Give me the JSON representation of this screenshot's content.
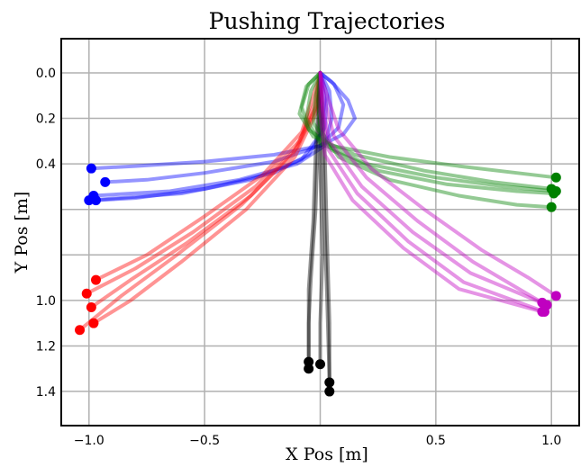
{
  "chart_data": {
    "type": "line",
    "title": "Pushing Trajectories",
    "xlabel": "X Pos [m]",
    "ylabel": "Y Pos [m]",
    "xlim": [
      -1.12,
      1.12
    ],
    "ylim": [
      1.55,
      -0.15
    ],
    "y_inverted": true,
    "grid": true,
    "xticks": [
      -1.0,
      -0.5,
      0.5,
      1.0
    ],
    "xtick_labels": [
      "−1.0",
      "−0.5",
      "0.5",
      "1.0"
    ],
    "yticks": [
      0.0,
      0.2,
      0.4,
      1.0,
      1.2,
      1.4
    ],
    "ytick_labels": [
      "0.0",
      "0.2",
      "0.4",
      "1.0",
      "1.2",
      "1.4"
    ],
    "extra_gridlines_y": [
      0.6,
      0.8
    ],
    "series": [
      {
        "color": "#0000ff",
        "endpoints": [
          [
            -0.99,
            0.42
          ],
          [
            -0.93,
            0.48
          ],
          [
            -0.98,
            0.54
          ],
          [
            -0.97,
            0.56
          ],
          [
            -1.0,
            0.56
          ]
        ],
        "paths": [
          [
            [
              0.0,
              0.0
            ],
            [
              0.05,
              0.04
            ],
            [
              0.12,
              0.12
            ],
            [
              0.15,
              0.2
            ],
            [
              0.1,
              0.27
            ],
            [
              0.0,
              0.32
            ],
            [
              -0.2,
              0.36
            ],
            [
              -0.5,
              0.39
            ],
            [
              -0.8,
              0.41
            ],
            [
              -0.99,
              0.42
            ]
          ],
          [
            [
              0.0,
              0.0
            ],
            [
              0.06,
              0.05
            ],
            [
              0.1,
              0.14
            ],
            [
              0.08,
              0.24
            ],
            [
              0.0,
              0.32
            ],
            [
              -0.2,
              0.39
            ],
            [
              -0.5,
              0.44
            ],
            [
              -0.75,
              0.47
            ],
            [
              -0.93,
              0.48
            ]
          ],
          [
            [
              0.0,
              0.0
            ],
            [
              0.04,
              0.08
            ],
            [
              0.05,
              0.2
            ],
            [
              0.02,
              0.32
            ],
            [
              -0.1,
              0.4
            ],
            [
              -0.35,
              0.47
            ],
            [
              -0.65,
              0.52
            ],
            [
              -0.98,
              0.54
            ]
          ],
          [
            [
              0.0,
              0.0
            ],
            [
              0.03,
              0.1
            ],
            [
              0.02,
              0.24
            ],
            [
              -0.05,
              0.36
            ],
            [
              -0.2,
              0.44
            ],
            [
              -0.5,
              0.51
            ],
            [
              -0.8,
              0.55
            ],
            [
              -0.97,
              0.56
            ]
          ],
          [
            [
              0.0,
              0.0
            ],
            [
              0.02,
              0.12
            ],
            [
              0.0,
              0.27
            ],
            [
              -0.08,
              0.38
            ],
            [
              -0.3,
              0.47
            ],
            [
              -0.6,
              0.53
            ],
            [
              -1.0,
              0.56
            ]
          ]
        ]
      },
      {
        "color": "#ff0000",
        "endpoints": [
          [
            -0.97,
            0.91
          ],
          [
            -1.01,
            0.97
          ],
          [
            -0.99,
            1.03
          ],
          [
            -1.04,
            1.13
          ],
          [
            -0.98,
            1.1
          ]
        ],
        "paths": [
          [
            [
              0.0,
              0.0
            ],
            [
              -0.03,
              0.1
            ],
            [
              -0.08,
              0.26
            ],
            [
              -0.25,
              0.45
            ],
            [
              -0.5,
              0.63
            ],
            [
              -0.75,
              0.8
            ],
            [
              -0.97,
              0.91
            ]
          ],
          [
            [
              0.0,
              0.0
            ],
            [
              -0.02,
              0.12
            ],
            [
              -0.09,
              0.3
            ],
            [
              -0.28,
              0.5
            ],
            [
              -0.55,
              0.7
            ],
            [
              -0.8,
              0.86
            ],
            [
              -1.01,
              0.97
            ]
          ],
          [
            [
              0.0,
              0.0
            ],
            [
              -0.01,
              0.14
            ],
            [
              -0.1,
              0.33
            ],
            [
              -0.3,
              0.54
            ],
            [
              -0.58,
              0.75
            ],
            [
              -0.82,
              0.91
            ],
            [
              -0.99,
              1.03
            ]
          ],
          [
            [
              0.0,
              0.0
            ],
            [
              -0.02,
              0.15
            ],
            [
              -0.12,
              0.36
            ],
            [
              -0.34,
              0.58
            ],
            [
              -0.62,
              0.8
            ],
            [
              -0.86,
              0.98
            ],
            [
              -1.04,
              1.13
            ]
          ],
          [
            [
              0.0,
              0.0
            ],
            [
              -0.01,
              0.16
            ],
            [
              -0.11,
              0.37
            ],
            [
              -0.32,
              0.6
            ],
            [
              -0.6,
              0.83
            ],
            [
              -0.82,
              1.0
            ],
            [
              -0.98,
              1.1
            ]
          ]
        ]
      },
      {
        "color": "#000000",
        "endpoints": [
          [
            -0.05,
            1.27
          ],
          [
            -0.05,
            1.3
          ],
          [
            0.0,
            1.28
          ],
          [
            0.04,
            1.36
          ],
          [
            0.04,
            1.4
          ]
        ],
        "paths": [
          [
            [
              0.0,
              0.0
            ],
            [
              -0.01,
              0.3
            ],
            [
              -0.02,
              0.6
            ],
            [
              -0.04,
              0.9
            ],
            [
              -0.05,
              1.1
            ],
            [
              -0.05,
              1.27
            ]
          ],
          [
            [
              0.0,
              0.0
            ],
            [
              -0.02,
              0.35
            ],
            [
              -0.03,
              0.65
            ],
            [
              -0.05,
              0.95
            ],
            [
              -0.05,
              1.3
            ]
          ],
          [
            [
              0.0,
              0.0
            ],
            [
              0.0,
              0.4
            ],
            [
              0.01,
              0.8
            ],
            [
              0.0,
              1.1
            ],
            [
              0.0,
              1.28
            ]
          ],
          [
            [
              0.0,
              0.0
            ],
            [
              0.01,
              0.3
            ],
            [
              0.02,
              0.7
            ],
            [
              0.03,
              1.0
            ],
            [
              0.04,
              1.36
            ]
          ],
          [
            [
              0.0,
              0.0
            ],
            [
              0.02,
              0.35
            ],
            [
              0.03,
              0.75
            ],
            [
              0.04,
              1.1
            ],
            [
              0.04,
              1.4
            ]
          ]
        ]
      },
      {
        "color": "#008000",
        "endpoints": [
          [
            1.02,
            0.46
          ],
          [
            1.0,
            0.51
          ],
          [
            1.02,
            0.52
          ],
          [
            1.01,
            0.53
          ],
          [
            1.0,
            0.59
          ]
        ],
        "paths": [
          [
            [
              0.0,
              0.0
            ],
            [
              -0.05,
              0.05
            ],
            [
              -0.08,
              0.15
            ],
            [
              -0.05,
              0.25
            ],
            [
              0.05,
              0.32
            ],
            [
              0.3,
              0.37
            ],
            [
              0.6,
              0.41
            ],
            [
              0.85,
              0.44
            ],
            [
              1.02,
              0.46
            ]
          ],
          [
            [
              0.0,
              0.0
            ],
            [
              -0.06,
              0.06
            ],
            [
              -0.09,
              0.18
            ],
            [
              -0.03,
              0.28
            ],
            [
              0.15,
              0.36
            ],
            [
              0.45,
              0.43
            ],
            [
              0.75,
              0.48
            ],
            [
              1.0,
              0.51
            ]
          ],
          [
            [
              0.0,
              0.0
            ],
            [
              -0.04,
              0.08
            ],
            [
              -0.06,
              0.2
            ],
            [
              0.0,
              0.31
            ],
            [
              0.2,
              0.4
            ],
            [
              0.5,
              0.46
            ],
            [
              0.8,
              0.5
            ],
            [
              1.02,
              0.52
            ]
          ],
          [
            [
              0.0,
              0.0
            ],
            [
              -0.02,
              0.1
            ],
            [
              -0.03,
              0.22
            ],
            [
              0.05,
              0.34
            ],
            [
              0.25,
              0.43
            ],
            [
              0.55,
              0.49
            ],
            [
              0.85,
              0.52
            ],
            [
              1.01,
              0.53
            ]
          ],
          [
            [
              0.0,
              0.0
            ],
            [
              -0.01,
              0.12
            ],
            [
              0.0,
              0.25
            ],
            [
              0.08,
              0.37
            ],
            [
              0.3,
              0.47
            ],
            [
              0.6,
              0.54
            ],
            [
              0.85,
              0.58
            ],
            [
              1.0,
              0.59
            ]
          ]
        ]
      },
      {
        "color": "#c000c0",
        "endpoints": [
          [
            1.02,
            0.98
          ],
          [
            0.96,
            1.01
          ],
          [
            0.98,
            1.02
          ],
          [
            0.97,
            1.05
          ],
          [
            0.96,
            1.05
          ]
        ],
        "paths": [
          [
            [
              0.0,
              0.0
            ],
            [
              0.03,
              0.1
            ],
            [
              0.08,
              0.25
            ],
            [
              0.22,
              0.42
            ],
            [
              0.45,
              0.6
            ],
            [
              0.7,
              0.78
            ],
            [
              0.9,
              0.9
            ],
            [
              1.02,
              0.98
            ]
          ],
          [
            [
              0.0,
              0.0
            ],
            [
              0.02,
              0.12
            ],
            [
              0.06,
              0.28
            ],
            [
              0.2,
              0.46
            ],
            [
              0.42,
              0.65
            ],
            [
              0.66,
              0.83
            ],
            [
              0.96,
              1.01
            ]
          ],
          [
            [
              0.0,
              0.0
            ],
            [
              0.01,
              0.14
            ],
            [
              0.04,
              0.3
            ],
            [
              0.18,
              0.5
            ],
            [
              0.4,
              0.7
            ],
            [
              0.65,
              0.88
            ],
            [
              0.98,
              1.02
            ]
          ],
          [
            [
              0.0,
              0.0
            ],
            [
              0.01,
              0.16
            ],
            [
              0.03,
              0.33
            ],
            [
              0.16,
              0.53
            ],
            [
              0.38,
              0.74
            ],
            [
              0.62,
              0.92
            ],
            [
              0.97,
              1.05
            ]
          ],
          [
            [
              0.0,
              0.0
            ],
            [
              0.0,
              0.18
            ],
            [
              0.02,
              0.36
            ],
            [
              0.14,
              0.56
            ],
            [
              0.36,
              0.77
            ],
            [
              0.6,
              0.95
            ],
            [
              0.96,
              1.05
            ]
          ]
        ]
      }
    ]
  }
}
